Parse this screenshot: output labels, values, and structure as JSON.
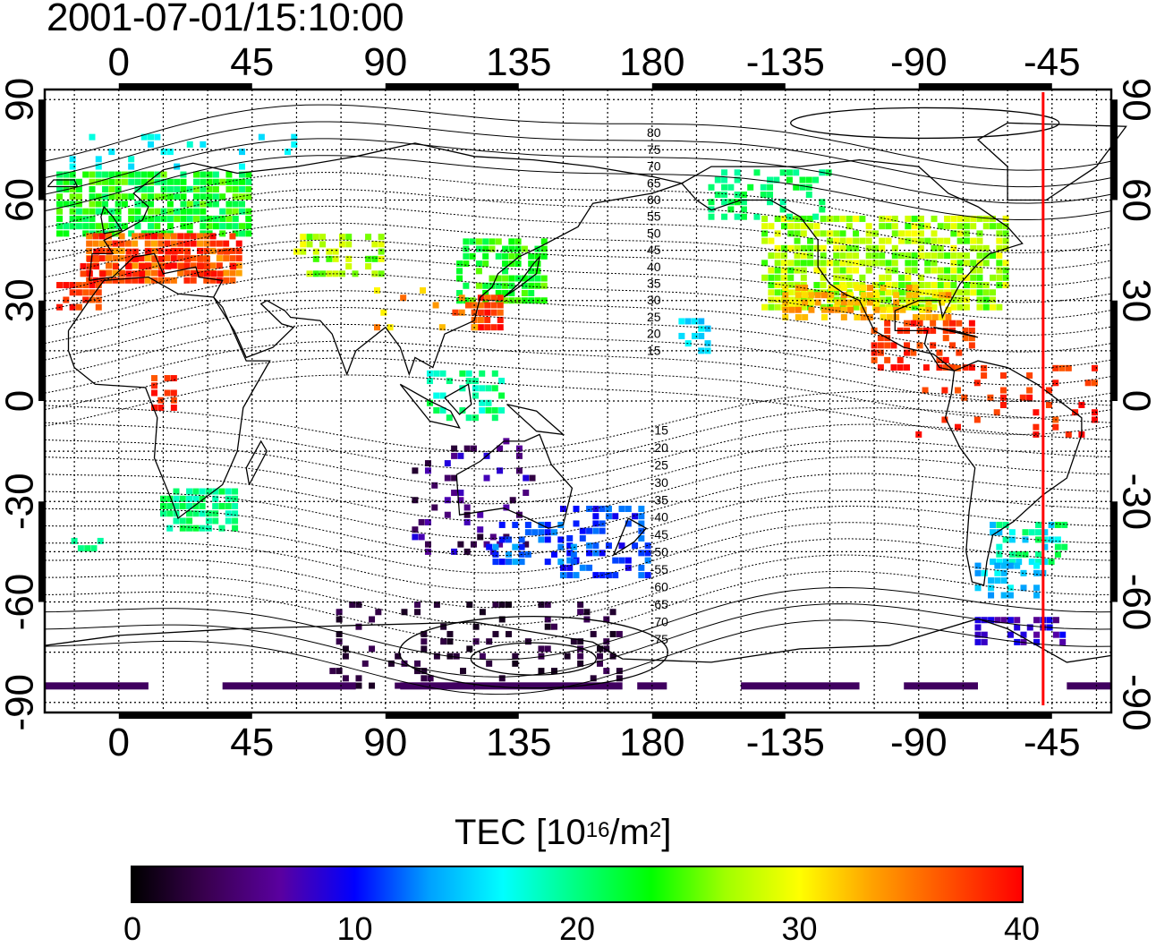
{
  "title": "2001-07-01/15:10:00",
  "map": {
    "top_ticks": [
      "0",
      "45",
      "90",
      "135",
      "180",
      "-135",
      "-90",
      "-45"
    ],
    "bottom_ticks": [
      "0",
      "45",
      "90",
      "135",
      "180",
      "-135",
      "-90",
      "-45"
    ],
    "left_ticks": [
      "90",
      "60",
      "30",
      "0",
      "-30",
      "-60",
      "-90"
    ],
    "right_ticks": [
      "90",
      "60",
      "30",
      "0",
      "-30",
      "-60",
      "-90"
    ],
    "lon_range": [
      -25,
      335
    ],
    "lat_range": [
      -93,
      93
    ],
    "contour_labels_north": [
      "80",
      "75",
      "70",
      "65",
      "60",
      "55",
      "50",
      "45",
      "40",
      "35",
      "30",
      "25",
      "20",
      "15"
    ],
    "contour_labels_south": [
      "-15",
      "-20",
      "-25",
      "-30",
      "-35",
      "-40",
      "-45",
      "-50",
      "-55",
      "-60",
      "-65",
      "-70",
      "-75"
    ],
    "marker_longitude": -48,
    "marker_color": "#ff0000"
  },
  "colorbar": {
    "title_main": "TEC  [10",
    "title_exp1": "16",
    "title_mid": "/m",
    "title_exp2": "2",
    "title_end": "]",
    "ticks": [
      "0",
      "10",
      "20",
      "30",
      "40"
    ],
    "range": [
      0,
      40
    ],
    "colors": [
      "#000000",
      "#3a0050",
      "#5a00a0",
      "#0000ff",
      "#00a0ff",
      "#00ffff",
      "#00ff80",
      "#00ff00",
      "#a0ff00",
      "#ffff00",
      "#ffa000",
      "#ff5000",
      "#ff0000"
    ]
  }
}
